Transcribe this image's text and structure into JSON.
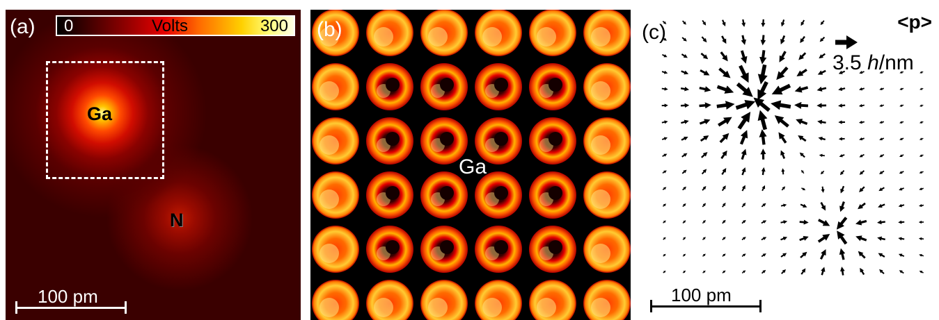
{
  "panel_a": {
    "label": "(a)",
    "colorbar": {
      "min": "0",
      "label": "Volts",
      "max": "300"
    },
    "atoms": {
      "ga": "Ga",
      "n": "N"
    },
    "scalebar": "100 pm"
  },
  "panel_b": {
    "label": "(b)",
    "grid": {
      "rows": 6,
      "cols": 6
    },
    "atom": "Ga"
  },
  "panel_c": {
    "label": "(c)",
    "legend_symbol": "<p>",
    "legend_value_number": "3.5",
    "legend_value_unit_italic": "h",
    "legend_value_unit_rest": "/nm",
    "scalebar": "100 pm"
  },
  "colors": {
    "hot_dark": "#3a0000",
    "hot_red": "#e60000",
    "hot_yellow": "#ffd000"
  }
}
